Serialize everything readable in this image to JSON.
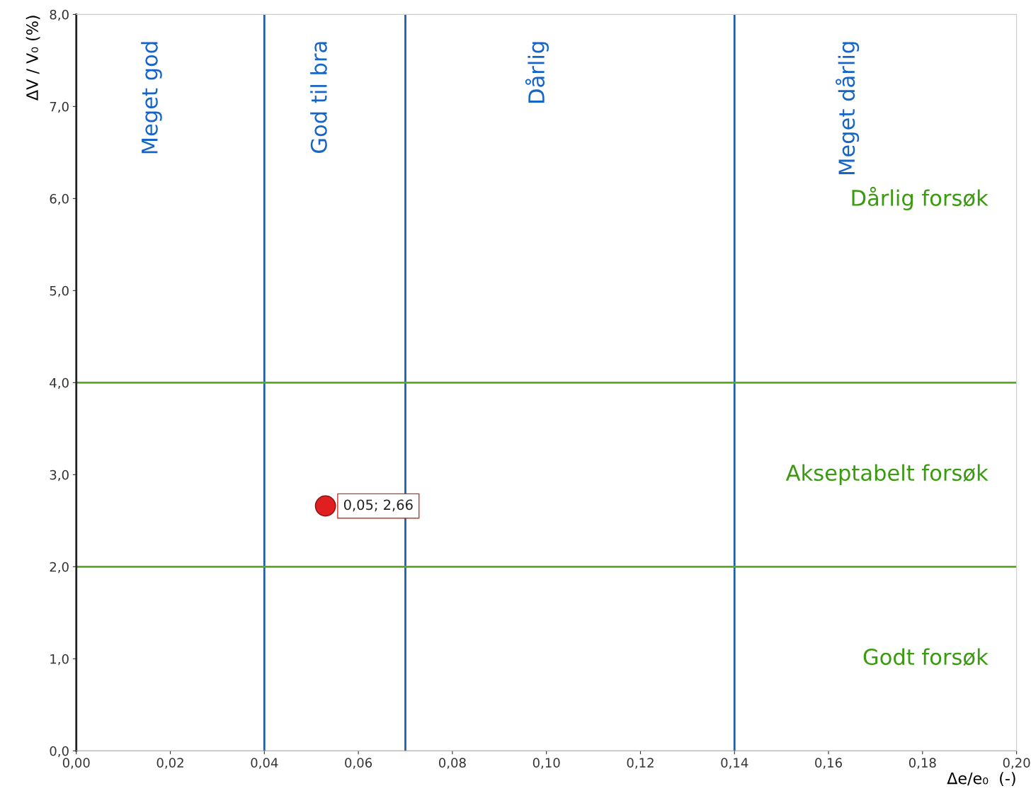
{
  "chart_data": {
    "type": "scatter",
    "xlabel": "Δe/e₀  (-)",
    "ylabel": "ΔV / V₀ (%)",
    "x": [
      0.053
    ],
    "values": [
      2.66
    ],
    "color": "#e02020",
    "marker": "circle",
    "value_labels": [
      "0,05; 2,66"
    ],
    "xlim": [
      0,
      0.2
    ],
    "ylim": [
      0,
      8
    ],
    "xticks": [
      {
        "value": 0,
        "label": "0,00"
      },
      {
        "value": 0.02,
        "label": "0,02"
      },
      {
        "value": 0.04,
        "label": "0,04"
      },
      {
        "value": 0.06,
        "label": "0,06"
      },
      {
        "value": 0.08,
        "label": "0,08"
      },
      {
        "value": 0.1,
        "label": "0,10"
      },
      {
        "value": 0.12,
        "label": "0,12"
      },
      {
        "value": 0.14,
        "label": "0,14"
      },
      {
        "value": 0.16,
        "label": "0,16"
      },
      {
        "value": 0.18,
        "label": "0,18"
      },
      {
        "value": 0.2,
        "label": "0,20"
      }
    ],
    "yticks": [
      {
        "value": 0,
        "label": "0,0"
      },
      {
        "value": 1,
        "label": "1,0"
      },
      {
        "value": 2,
        "label": "2,0"
      },
      {
        "value": 3,
        "label": "3,0"
      },
      {
        "value": 4,
        "label": "4,0"
      },
      {
        "value": 5,
        "label": "5,0"
      },
      {
        "value": 6,
        "label": "6,0"
      },
      {
        "value": 7,
        "label": "7,0"
      },
      {
        "value": 8,
        "label": "8,0"
      }
    ],
    "ref_lines": [
      {
        "axis": "x",
        "value": 0.04,
        "color": "#1f5fa8"
      },
      {
        "axis": "x",
        "value": 0.07,
        "color": "#1f5fa8"
      },
      {
        "axis": "x",
        "value": 0.14,
        "color": "#1f5fa8"
      },
      {
        "axis": "y",
        "value": 2,
        "color": "#5aaa1e"
      },
      {
        "axis": "y",
        "value": 4,
        "color": "#5aaa1e"
      }
    ],
    "annotations": [
      "Meget god",
      "God til bra",
      "Dårlig",
      "Meget dårlig",
      "Dårlig forsøk",
      "Akseptabelt forsøk",
      "Godt forsøk"
    ],
    "grid": false
  }
}
